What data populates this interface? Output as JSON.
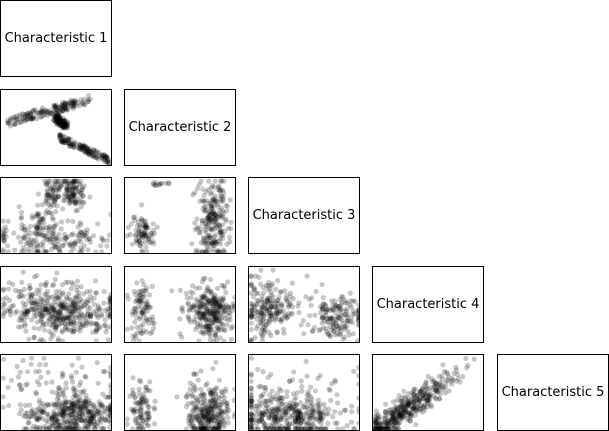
{
  "chart_data": {
    "type": "scatter-matrix",
    "variables": [
      "Characteristic 1",
      "Characteristic 2",
      "Characteristic 3",
      "Characteristic 4",
      "Characteristic 5"
    ],
    "lower_panels": [
      {
        "row": 2,
        "col": 1,
        "shape": "arc-and-falling-band",
        "note_points_estimated": true
      },
      {
        "row": 3,
        "col": 1,
        "shape": "clusters"
      },
      {
        "row": 3,
        "col": 2,
        "shape": "two-clusters"
      },
      {
        "row": 4,
        "col": 1,
        "shape": "dense-band"
      },
      {
        "row": 4,
        "col": 2,
        "shape": "two-bands"
      },
      {
        "row": 4,
        "col": 3,
        "shape": "two-bands"
      },
      {
        "row": 5,
        "col": 1,
        "shape": "dense-bottom"
      },
      {
        "row": 5,
        "col": 2,
        "shape": "two-bands"
      },
      {
        "row": 5,
        "col": 3,
        "shape": "dense-bottom"
      },
      {
        "row": 5,
        "col": 4,
        "shape": "positive-linear"
      }
    ],
    "point_color": "#000000",
    "point_opacity": 0.22,
    "axes_visible": false,
    "grid": false
  }
}
